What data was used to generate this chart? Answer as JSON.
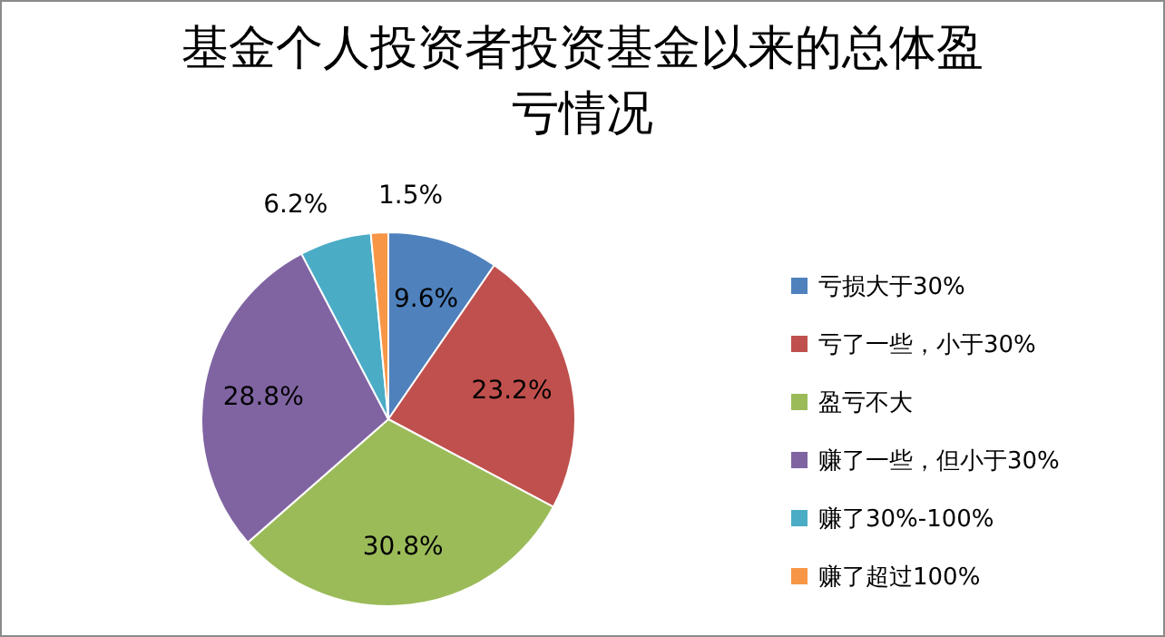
{
  "chart_data": {
    "type": "pie",
    "title": "基金个人投资者投资基金以来的总体盈亏情况",
    "categories": [
      "亏损大于30%",
      "亏了一些，小于30%",
      "盈亏不大",
      "赚了一些，但小于30%",
      "赚了30%-100%",
      "赚了超过100%"
    ],
    "values": [
      9.6,
      23.2,
      30.8,
      28.8,
      6.2,
      1.5
    ],
    "colors": [
      "#4f81bd",
      "#c0504d",
      "#9bbb59",
      "#8064a2",
      "#4bacc6",
      "#f79646"
    ],
    "value_labels": [
      "9.6%",
      "23.2%",
      "30.8%",
      "28.8%",
      "6.2%",
      "1.5%"
    ],
    "legend": "right"
  }
}
